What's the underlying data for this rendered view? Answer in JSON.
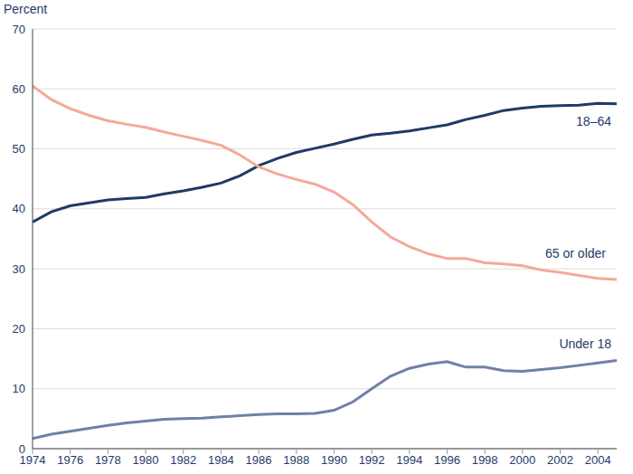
{
  "chart_data": {
    "type": "line",
    "y_label": "Percent",
    "x": [
      1974,
      1975,
      1976,
      1977,
      1978,
      1979,
      1980,
      1981,
      1982,
      1983,
      1984,
      1985,
      1986,
      1987,
      1988,
      1989,
      1990,
      1991,
      1992,
      1993,
      1994,
      1995,
      1996,
      1997,
      1998,
      1999,
      2000,
      2001,
      2002,
      2003,
      2004,
      2005
    ],
    "series": [
      {
        "name": "18–64",
        "color": "#1f3a68",
        "values": [
          37.8,
          39.5,
          40.5,
          41.0,
          41.5,
          41.7,
          41.9,
          42.5,
          43.0,
          43.6,
          44.3,
          45.5,
          47.2,
          48.4,
          49.4,
          50.1,
          50.8,
          51.6,
          52.3,
          52.6,
          53.0,
          53.5,
          54.0,
          54.9,
          55.6,
          56.4,
          56.8,
          57.1,
          57.2,
          57.3,
          57.6,
          57.5
        ]
      },
      {
        "name": "65 or older",
        "color": "#f4a99a",
        "values": [
          60.5,
          58.2,
          56.7,
          55.6,
          54.7,
          54.1,
          53.6,
          52.8,
          52.1,
          51.4,
          50.6,
          49.0,
          47.0,
          45.8,
          44.9,
          44.1,
          42.8,
          40.7,
          37.8,
          35.3,
          33.7,
          32.5,
          31.7,
          31.7,
          31.0,
          30.8,
          30.5,
          29.8,
          29.4,
          28.9,
          28.4,
          28.2
        ]
      },
      {
        "name": "Under 18",
        "color": "#7080a8",
        "values": [
          1.7,
          2.4,
          2.9,
          3.4,
          3.9,
          4.3,
          4.6,
          4.9,
          5.0,
          5.1,
          5.3,
          5.5,
          5.7,
          5.8,
          5.8,
          5.9,
          6.4,
          7.8,
          10.0,
          12.1,
          13.4,
          14.1,
          14.5,
          13.6,
          13.6,
          13.0,
          12.9,
          13.2,
          13.5,
          13.9,
          14.3,
          14.7
        ]
      }
    ],
    "xlim": [
      1974,
      2005
    ],
    "xticks": [
      1974,
      1976,
      1978,
      1980,
      1982,
      1984,
      1986,
      1988,
      1990,
      1992,
      1994,
      1996,
      1998,
      2000,
      2002,
      2004
    ],
    "ylim": [
      0,
      70
    ],
    "yticks": [
      0,
      10,
      20,
      30,
      40,
      50,
      60,
      70
    ],
    "grid": true
  }
}
